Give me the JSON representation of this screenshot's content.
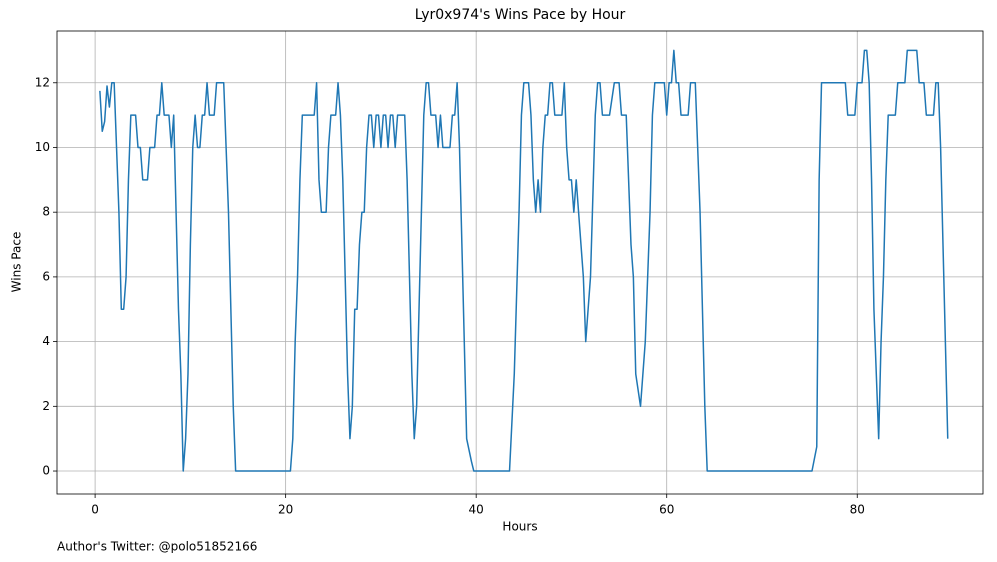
{
  "chart_data": {
    "type": "line",
    "title": "Lyr0x974's Wins Pace by Hour",
    "x_label": "Hours",
    "y_label": "Wins Pace",
    "footnote": "Author's Twitter: @polo51852166",
    "x": [
      0.5,
      0.75,
      1,
      1.25,
      1.5,
      1.75,
      2,
      2.25,
      2.5,
      2.75,
      3,
      3.25,
      3.5,
      3.75,
      4,
      4.25,
      4.5,
      4.75,
      5,
      5.25,
      5.5,
      5.75,
      6,
      6.25,
      6.5,
      6.75,
      7,
      7.25,
      7.5,
      7.75,
      8,
      8.25,
      8.5,
      8.75,
      9,
      9.25,
      9.5,
      9.75,
      10,
      10.25,
      10.5,
      10.75,
      11,
      11.25,
      11.5,
      11.75,
      12,
      12.25,
      12.5,
      12.75,
      13,
      13.5,
      14,
      14.5,
      14.75,
      20.5,
      20.75,
      21,
      21.25,
      21.5,
      21.75,
      23,
      23.25,
      23.5,
      23.75,
      24.25,
      24.5,
      24.75,
      25.25,
      25.5,
      25.75,
      26,
      26.25,
      26.5,
      26.75,
      27,
      27.25,
      27.5,
      27.75,
      28,
      28.25,
      28.5,
      28.75,
      29,
      29.25,
      29.5,
      29.75,
      30,
      30.25,
      30.5,
      30.75,
      31,
      31.25,
      31.5,
      31.75,
      32.5,
      32.75,
      33,
      33.25,
      33.5,
      33.75,
      34,
      34.25,
      34.5,
      34.75,
      35,
      35.25,
      35.75,
      36,
      36.25,
      36.5,
      37.25,
      37.5,
      37.75,
      38,
      38.25,
      38.5,
      38.75,
      39,
      39.5,
      39.75,
      43.5,
      44,
      44.5,
      44.75,
      45,
      45.5,
      45.75,
      46,
      46.25,
      46.5,
      46.75,
      47,
      47.25,
      47.5,
      47.75,
      48,
      48.25,
      49,
      49.25,
      49.5,
      49.75,
      50,
      50.25,
      50.5,
      50.75,
      51,
      51.25,
      51.5,
      52,
      52.5,
      52.75,
      53,
      53.25,
      54,
      54.5,
      55,
      55.25,
      55.75,
      56.25,
      56.5,
      56.75,
      57.25,
      57.75,
      58.25,
      58.5,
      58.75,
      59.75,
      60,
      60.25,
      60.5,
      60.75,
      61,
      61.25,
      61.5,
      62.25,
      62.5,
      63,
      63.5,
      64,
      64.25,
      75.25,
      75.75,
      76,
      76.25,
      78.75,
      79,
      79.75,
      80,
      80.5,
      80.75,
      81,
      81.25,
      81.5,
      81.75,
      82.25,
      82.5,
      82.75,
      83,
      83.25,
      84,
      84.25,
      85,
      85.25,
      86.25,
      86.5,
      87,
      87.25,
      88,
      88.25,
      88.5,
      88.75,
      89.5
    ],
    "series": [
      {
        "name": "Wins Pace",
        "color": "#1f77b4",
        "values": [
          11.75,
          10.5,
          10.8,
          11.9,
          11.25,
          12,
          12,
          10,
          8,
          5,
          5,
          6,
          9,
          11,
          11,
          11,
          10,
          10,
          9,
          9,
          9,
          10,
          10,
          10,
          11,
          11,
          12,
          11,
          11,
          11,
          10,
          11,
          8,
          5,
          3,
          0,
          1,
          3,
          7,
          10,
          11,
          10,
          10,
          11,
          11,
          12,
          11,
          11,
          11,
          12,
          12,
          12,
          8,
          2,
          0,
          0,
          1,
          4,
          6,
          9,
          11,
          11,
          12,
          9,
          8,
          8,
          10,
          11,
          11,
          12,
          11,
          9,
          6,
          3,
          1,
          2,
          5,
          5,
          7,
          8,
          8,
          10,
          11,
          11,
          10,
          11,
          11,
          10,
          11,
          11,
          10,
          11,
          11,
          10,
          11,
          11,
          9,
          6,
          3,
          1,
          2,
          5,
          8,
          11,
          12,
          12,
          11,
          11,
          10,
          11,
          10,
          10,
          11,
          11,
          12,
          10,
          7,
          4,
          1,
          0.3,
          0,
          0,
          3,
          8,
          11,
          12,
          12,
          11,
          9,
          8,
          9,
          8,
          10,
          11,
          11,
          12,
          12,
          11,
          11,
          12,
          10,
          9,
          9,
          8,
          9,
          8,
          7,
          6,
          4,
          6,
          11,
          12,
          12,
          11,
          11,
          12,
          12,
          11,
          11,
          7,
          6,
          3,
          2,
          4,
          8,
          11,
          12,
          12,
          11,
          12,
          12,
          13,
          12,
          12,
          11,
          11,
          12,
          12,
          8,
          2,
          0,
          0,
          0.75,
          9,
          12,
          12,
          11,
          11,
          12,
          12,
          13,
          13,
          12,
          9,
          5,
          1,
          4,
          6,
          9,
          11,
          11,
          12,
          12,
          13,
          13,
          12,
          12,
          11,
          11,
          12,
          12,
          10,
          1
        ]
      }
    ],
    "xlim": [
      -4,
      93.2
    ],
    "ylim": [
      -0.71,
      13.6
    ],
    "xticks": [
      0,
      20,
      40,
      60,
      80
    ],
    "yticks": [
      0,
      2,
      4,
      6,
      8,
      10,
      12
    ],
    "grid": true
  }
}
